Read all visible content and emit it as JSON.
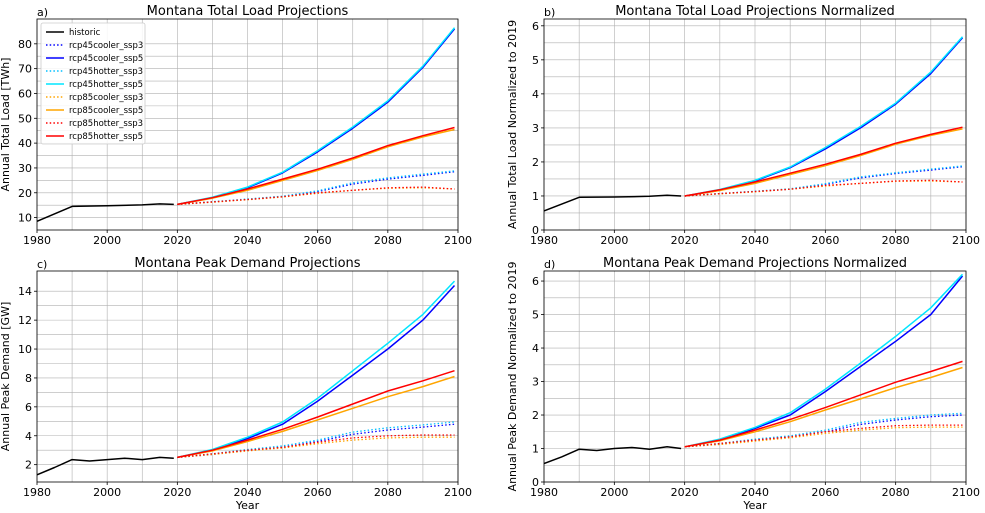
{
  "chart_data": [
    {
      "id": "a",
      "type": "line",
      "panel_letter": "a)",
      "title": "Montana Total Load Projections",
      "xlabel": "",
      "ylabel": "Annual Total Load [TWh]",
      "xlim": [
        1980,
        2100
      ],
      "ylim": [
        5,
        90
      ],
      "xticks": [
        1980,
        2000,
        2020,
        2040,
        2060,
        2080,
        2100
      ],
      "yticks": [
        10,
        20,
        30,
        40,
        50,
        60,
        70,
        80
      ],
      "grid": true,
      "legend": "upper-left",
      "series": [
        {
          "name": "historic",
          "color": "#000000",
          "dash": "solid",
          "x": [
            1980,
            1990,
            2000,
            2010,
            2015,
            2019
          ],
          "y": [
            8.5,
            14.5,
            14.8,
            15.1,
            15.5,
            15.3
          ]
        },
        {
          "name": "rcp45cooler_ssp3",
          "color": "#0000ff",
          "dash": "dotted",
          "x": [
            2020,
            2030,
            2040,
            2050,
            2060,
            2070,
            2080,
            2090,
            2099
          ],
          "y": [
            15.3,
            16.3,
            17.3,
            18.4,
            20.5,
            23.5,
            25.5,
            27,
            28.5
          ]
        },
        {
          "name": "rcp45cooler_ssp5",
          "color": "#0000ff",
          "dash": "solid",
          "x": [
            2020,
            2030,
            2040,
            2050,
            2060,
            2070,
            2080,
            2090,
            2099
          ],
          "y": [
            15.3,
            18,
            22,
            28,
            36.5,
            46,
            56.5,
            70.5,
            86
          ]
        },
        {
          "name": "rcp45hotter_ssp3",
          "color": "#00bfff",
          "dash": "dotted",
          "x": [
            2020,
            2030,
            2040,
            2050,
            2060,
            2070,
            2080,
            2090,
            2099
          ],
          "y": [
            15.3,
            16.4,
            17.5,
            18.6,
            20.8,
            24,
            26,
            27.5,
            28.8
          ]
        },
        {
          "name": "rcp45hotter_ssp5",
          "color": "#00e5ff",
          "dash": "solid",
          "x": [
            2020,
            2030,
            2040,
            2050,
            2060,
            2070,
            2080,
            2090,
            2099
          ],
          "y": [
            15.3,
            18.2,
            22.3,
            28.3,
            37,
            46.5,
            57,
            71,
            86.5
          ]
        },
        {
          "name": "rcp85cooler_ssp3",
          "color": "#ffa500",
          "dash": "dotted",
          "x": [
            2020,
            2030,
            2040,
            2050,
            2060,
            2070,
            2080,
            2090,
            2099
          ],
          "y": [
            15.3,
            16.2,
            17.2,
            18.3,
            19.8,
            21,
            21.8,
            22,
            21.5
          ]
        },
        {
          "name": "rcp85cooler_ssp5",
          "color": "#ffa500",
          "dash": "solid",
          "x": [
            2020,
            2030,
            2040,
            2050,
            2060,
            2070,
            2080,
            2090,
            2099
          ],
          "y": [
            15.3,
            17.8,
            21,
            25,
            29,
            33.5,
            38.5,
            42.5,
            45.5
          ]
        },
        {
          "name": "rcp85hotter_ssp3",
          "color": "#ff0000",
          "dash": "dotted",
          "x": [
            2020,
            2030,
            2040,
            2050,
            2060,
            2070,
            2080,
            2090,
            2099
          ],
          "y": [
            15.3,
            16.3,
            17.3,
            18.4,
            20,
            21,
            22,
            22.3,
            21.5
          ]
        },
        {
          "name": "rcp85hotter_ssp5",
          "color": "#ff0000",
          "dash": "solid",
          "x": [
            2020,
            2030,
            2040,
            2050,
            2060,
            2070,
            2080,
            2090,
            2099
          ],
          "y": [
            15.3,
            18,
            21.5,
            25.5,
            29.5,
            34,
            39,
            43,
            46.3
          ]
        }
      ]
    },
    {
      "id": "b",
      "type": "line",
      "panel_letter": "b)",
      "title": "Montana Total Load Projections Normalized",
      "xlabel": "",
      "ylabel": "Annual Total Load Normalized to 2019",
      "xlim": [
        1980,
        2100
      ],
      "ylim": [
        0,
        6.2
      ],
      "xticks": [
        1980,
        2000,
        2020,
        2040,
        2060,
        2080,
        2100
      ],
      "yticks": [
        0,
        1,
        2,
        3,
        4,
        5,
        6
      ],
      "grid": true,
      "series": [
        {
          "name": "historic",
          "color": "#000000",
          "dash": "solid",
          "x": [
            1980,
            1990,
            2000,
            2010,
            2015,
            2019
          ],
          "y": [
            0.56,
            0.96,
            0.97,
            0.99,
            1.02,
            1.0
          ]
        },
        {
          "name": "rcp45cooler_ssp3",
          "color": "#0000ff",
          "dash": "dotted",
          "x": [
            2020,
            2030,
            2040,
            2050,
            2060,
            2070,
            2080,
            2090,
            2099
          ],
          "y": [
            1.0,
            1.07,
            1.13,
            1.2,
            1.34,
            1.53,
            1.66,
            1.76,
            1.86
          ]
        },
        {
          "name": "rcp45cooler_ssp5",
          "color": "#0000ff",
          "dash": "solid",
          "x": [
            2020,
            2030,
            2040,
            2050,
            2060,
            2070,
            2080,
            2090,
            2099
          ],
          "y": [
            1.0,
            1.17,
            1.44,
            1.83,
            2.38,
            3.0,
            3.7,
            4.6,
            5.65
          ]
        },
        {
          "name": "rcp45hotter_ssp3",
          "color": "#00bfff",
          "dash": "dotted",
          "x": [
            2020,
            2030,
            2040,
            2050,
            2060,
            2070,
            2080,
            2090,
            2099
          ],
          "y": [
            1.0,
            1.07,
            1.14,
            1.21,
            1.36,
            1.56,
            1.68,
            1.79,
            1.88
          ]
        },
        {
          "name": "rcp45hotter_ssp5",
          "color": "#00e5ff",
          "dash": "solid",
          "x": [
            2020,
            2030,
            2040,
            2050,
            2060,
            2070,
            2080,
            2090,
            2099
          ],
          "y": [
            1.0,
            1.19,
            1.46,
            1.85,
            2.42,
            3.04,
            3.73,
            4.64,
            5.68
          ]
        },
        {
          "name": "rcp85cooler_ssp3",
          "color": "#ffa500",
          "dash": "dotted",
          "x": [
            2020,
            2030,
            2040,
            2050,
            2060,
            2070,
            2080,
            2090,
            2099
          ],
          "y": [
            1.0,
            1.06,
            1.12,
            1.2,
            1.29,
            1.37,
            1.43,
            1.44,
            1.41
          ]
        },
        {
          "name": "rcp85cooler_ssp5",
          "color": "#ffa500",
          "dash": "solid",
          "x": [
            2020,
            2030,
            2040,
            2050,
            2060,
            2070,
            2080,
            2090,
            2099
          ],
          "y": [
            1.0,
            1.16,
            1.37,
            1.63,
            1.89,
            2.19,
            2.52,
            2.78,
            2.97
          ]
        },
        {
          "name": "rcp85hotter_ssp3",
          "color": "#ff0000",
          "dash": "dotted",
          "x": [
            2020,
            2030,
            2040,
            2050,
            2060,
            2070,
            2080,
            2090,
            2099
          ],
          "y": [
            1.0,
            1.07,
            1.13,
            1.2,
            1.31,
            1.37,
            1.44,
            1.46,
            1.41
          ]
        },
        {
          "name": "rcp85hotter_ssp5",
          "color": "#ff0000",
          "dash": "solid",
          "x": [
            2020,
            2030,
            2040,
            2050,
            2060,
            2070,
            2080,
            2090,
            2099
          ],
          "y": [
            1.0,
            1.18,
            1.41,
            1.67,
            1.93,
            2.22,
            2.55,
            2.81,
            3.02
          ]
        }
      ]
    },
    {
      "id": "c",
      "type": "line",
      "panel_letter": "c)",
      "title": "Montana Peak Demand Projections",
      "xlabel": "Year",
      "ylabel": "Annual Peak Demand [GW]",
      "xlim": [
        1980,
        2100
      ],
      "ylim": [
        0.8,
        15.4
      ],
      "xticks": [
        1980,
        2000,
        2020,
        2040,
        2060,
        2080,
        2100
      ],
      "yticks": [
        2,
        4,
        6,
        8,
        10,
        12,
        14
      ],
      "grid": true,
      "series": [
        {
          "name": "historic",
          "color": "#000000",
          "dash": "solid",
          "x": [
            1980,
            1985,
            1990,
            1995,
            2000,
            2005,
            2010,
            2015,
            2019
          ],
          "y": [
            1.3,
            1.8,
            2.35,
            2.25,
            2.35,
            2.45,
            2.35,
            2.5,
            2.45
          ]
        },
        {
          "name": "rcp45cooler_ssp3",
          "color": "#0000ff",
          "dash": "dotted",
          "x": [
            2020,
            2030,
            2040,
            2050,
            2060,
            2070,
            2080,
            2090,
            2099
          ],
          "y": [
            2.5,
            2.7,
            3.0,
            3.2,
            3.6,
            4.1,
            4.4,
            4.6,
            4.8
          ]
        },
        {
          "name": "rcp45cooler_ssp5",
          "color": "#0000ff",
          "dash": "solid",
          "x": [
            2020,
            2030,
            2040,
            2050,
            2060,
            2070,
            2080,
            2090,
            2099
          ],
          "y": [
            2.5,
            3.0,
            3.8,
            4.8,
            6.4,
            8.2,
            10.0,
            12.0,
            14.4
          ]
        },
        {
          "name": "rcp45hotter_ssp3",
          "color": "#00bfff",
          "dash": "dotted",
          "x": [
            2020,
            2030,
            2040,
            2050,
            2060,
            2070,
            2080,
            2090,
            2099
          ],
          "y": [
            2.5,
            2.75,
            3.05,
            3.3,
            3.7,
            4.25,
            4.55,
            4.75,
            4.95
          ]
        },
        {
          "name": "rcp45hotter_ssp5",
          "color": "#00e5ff",
          "dash": "solid",
          "x": [
            2020,
            2030,
            2040,
            2050,
            2060,
            2070,
            2080,
            2090,
            2099
          ],
          "y": [
            2.5,
            3.05,
            3.9,
            4.95,
            6.6,
            8.5,
            10.4,
            12.4,
            14.7
          ]
        },
        {
          "name": "rcp85cooler_ssp3",
          "color": "#ffa500",
          "dash": "dotted",
          "x": [
            2020,
            2030,
            2040,
            2050,
            2060,
            2070,
            2080,
            2090,
            2099
          ],
          "y": [
            2.5,
            2.7,
            2.95,
            3.15,
            3.45,
            3.7,
            3.85,
            3.9,
            3.9
          ]
        },
        {
          "name": "rcp85cooler_ssp5",
          "color": "#ffa500",
          "dash": "solid",
          "x": [
            2020,
            2030,
            2040,
            2050,
            2060,
            2070,
            2080,
            2090,
            2099
          ],
          "y": [
            2.5,
            2.95,
            3.6,
            4.3,
            5.1,
            5.9,
            6.7,
            7.4,
            8.1
          ]
        },
        {
          "name": "rcp85hotter_ssp3",
          "color": "#ff0000",
          "dash": "dotted",
          "x": [
            2020,
            2030,
            2040,
            2050,
            2060,
            2070,
            2080,
            2090,
            2099
          ],
          "y": [
            2.5,
            2.75,
            3.0,
            3.2,
            3.55,
            3.85,
            4.0,
            4.05,
            4.05
          ]
        },
        {
          "name": "rcp85hotter_ssp5",
          "color": "#ff0000",
          "dash": "solid",
          "x": [
            2020,
            2030,
            2040,
            2050,
            2060,
            2070,
            2080,
            2090,
            2099
          ],
          "y": [
            2.5,
            3.0,
            3.7,
            4.45,
            5.3,
            6.2,
            7.1,
            7.8,
            8.5
          ]
        }
      ]
    },
    {
      "id": "d",
      "type": "line",
      "panel_letter": "d)",
      "title": "Montana Peak Demand Projections Normalized",
      "xlabel": "Year",
      "ylabel": "Annual Peak Demand Normalized to 2019",
      "xlim": [
        1980,
        2100
      ],
      "ylim": [
        0,
        6.3
      ],
      "xticks": [
        1980,
        2000,
        2020,
        2040,
        2060,
        2080,
        2100
      ],
      "yticks": [
        0,
        1,
        2,
        3,
        4,
        5,
        6
      ],
      "grid": true,
      "series": [
        {
          "name": "historic",
          "color": "#000000",
          "dash": "solid",
          "x": [
            1980,
            1985,
            1990,
            1995,
            2000,
            2005,
            2010,
            2015,
            2019
          ],
          "y": [
            0.55,
            0.75,
            0.98,
            0.94,
            1.0,
            1.03,
            0.98,
            1.05,
            1.0
          ]
        },
        {
          "name": "rcp45cooler_ssp3",
          "color": "#0000ff",
          "dash": "dotted",
          "x": [
            2020,
            2030,
            2040,
            2050,
            2060,
            2070,
            2080,
            2090,
            2099
          ],
          "y": [
            1.05,
            1.13,
            1.25,
            1.35,
            1.5,
            1.72,
            1.85,
            1.95,
            2.0
          ]
        },
        {
          "name": "rcp45cooler_ssp5",
          "color": "#0000ff",
          "dash": "solid",
          "x": [
            2020,
            2030,
            2040,
            2050,
            2060,
            2070,
            2080,
            2090,
            2099
          ],
          "y": [
            1.05,
            1.25,
            1.6,
            2.0,
            2.7,
            3.45,
            4.2,
            5.0,
            6.15
          ]
        },
        {
          "name": "rcp45hotter_ssp3",
          "color": "#00bfff",
          "dash": "dotted",
          "x": [
            2020,
            2030,
            2040,
            2050,
            2060,
            2070,
            2080,
            2090,
            2099
          ],
          "y": [
            1.05,
            1.15,
            1.28,
            1.38,
            1.55,
            1.78,
            1.9,
            2.0,
            2.05
          ]
        },
        {
          "name": "rcp45hotter_ssp5",
          "color": "#00e5ff",
          "dash": "solid",
          "x": [
            2020,
            2030,
            2040,
            2050,
            2060,
            2070,
            2080,
            2090,
            2099
          ],
          "y": [
            1.05,
            1.28,
            1.63,
            2.07,
            2.77,
            3.55,
            4.35,
            5.2,
            6.2
          ]
        },
        {
          "name": "rcp85cooler_ssp3",
          "color": "#ffa500",
          "dash": "dotted",
          "x": [
            2020,
            2030,
            2040,
            2050,
            2060,
            2070,
            2080,
            2090,
            2099
          ],
          "y": [
            1.05,
            1.12,
            1.22,
            1.32,
            1.45,
            1.55,
            1.62,
            1.64,
            1.64
          ]
        },
        {
          "name": "rcp85cooler_ssp5",
          "color": "#ffa500",
          "dash": "solid",
          "x": [
            2020,
            2030,
            2040,
            2050,
            2060,
            2070,
            2080,
            2090,
            2099
          ],
          "y": [
            1.05,
            1.23,
            1.5,
            1.8,
            2.15,
            2.48,
            2.82,
            3.12,
            3.42
          ]
        },
        {
          "name": "rcp85hotter_ssp3",
          "color": "#ff0000",
          "dash": "dotted",
          "x": [
            2020,
            2030,
            2040,
            2050,
            2060,
            2070,
            2080,
            2090,
            2099
          ],
          "y": [
            1.05,
            1.15,
            1.25,
            1.35,
            1.5,
            1.6,
            1.68,
            1.7,
            1.7
          ]
        },
        {
          "name": "rcp85hotter_ssp5",
          "color": "#ff0000",
          "dash": "solid",
          "x": [
            2020,
            2030,
            2040,
            2050,
            2060,
            2070,
            2080,
            2090,
            2099
          ],
          "y": [
            1.05,
            1.25,
            1.55,
            1.87,
            2.22,
            2.6,
            2.98,
            3.3,
            3.6
          ]
        }
      ]
    }
  ]
}
